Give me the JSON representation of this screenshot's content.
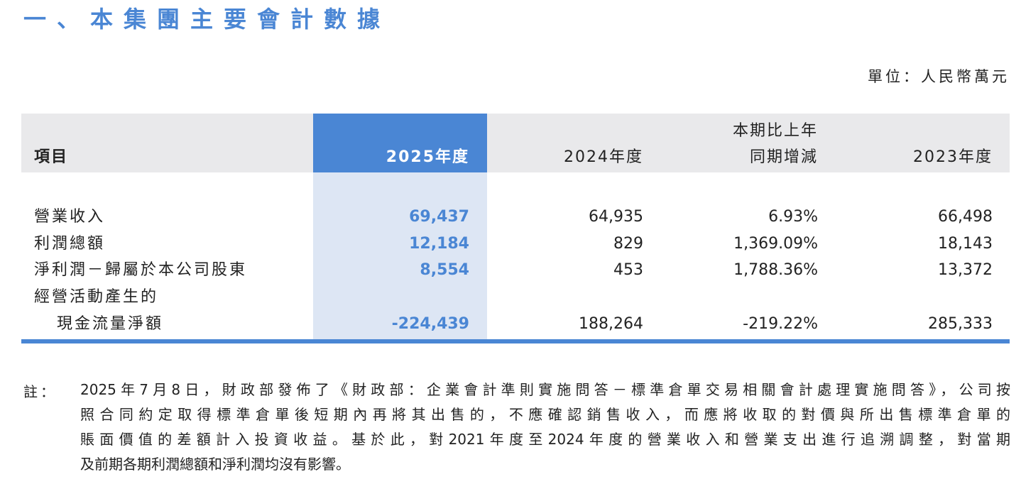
{
  "title": "一、本集團主要會計數據",
  "unit": "單位：人民幣萬元",
  "table": {
    "headers": {
      "item": "項目",
      "y2025": "2025年度",
      "y2024": "2024年度",
      "change_line1": "本期比上年",
      "change_line2": "同期增減",
      "y2023": "2023年度"
    },
    "rows": [
      {
        "label": "營業收入",
        "y2025": "69,437",
        "y2024": "64,935",
        "change": "6.93%",
        "y2023": "66,498"
      },
      {
        "label": "利潤總額",
        "y2025": "12,184",
        "y2024": "829",
        "change": "1,369.09%",
        "y2023": "18,143"
      },
      {
        "label": "淨利潤－歸屬於本公司股東",
        "y2025": "8,554",
        "y2024": "453",
        "change": "1,788.36%",
        "y2023": "13,372"
      },
      {
        "label": "經營活動產生的",
        "label2": "現金流量淨額",
        "y2025": "-224,439",
        "y2024": "188,264",
        "change": "-219.22%",
        "y2023": "285,333"
      }
    ]
  },
  "note": {
    "label": "註：",
    "lines": [
      "2025年7月8日，財政部發佈了《財政部：企業會計準則實施問答－標準倉單交易相關會計處理實施問答》，公司按",
      "照合同約定取得標準倉單後短期內再將其出售的，不應確認銷售收入，而應將收取的對價與所出售標準倉單的",
      "賬面價值的差額計入投資收益。基於此，對2021年度至2024年度的營業收入和營業支出進行追溯調整，對當期",
      "及前期各期利潤總額和淨利潤均沒有影響。"
    ]
  },
  "colors": {
    "accent": "#4a86d4",
    "highlight": "#dde6f4",
    "header_bg": "#e9e9eb"
  }
}
